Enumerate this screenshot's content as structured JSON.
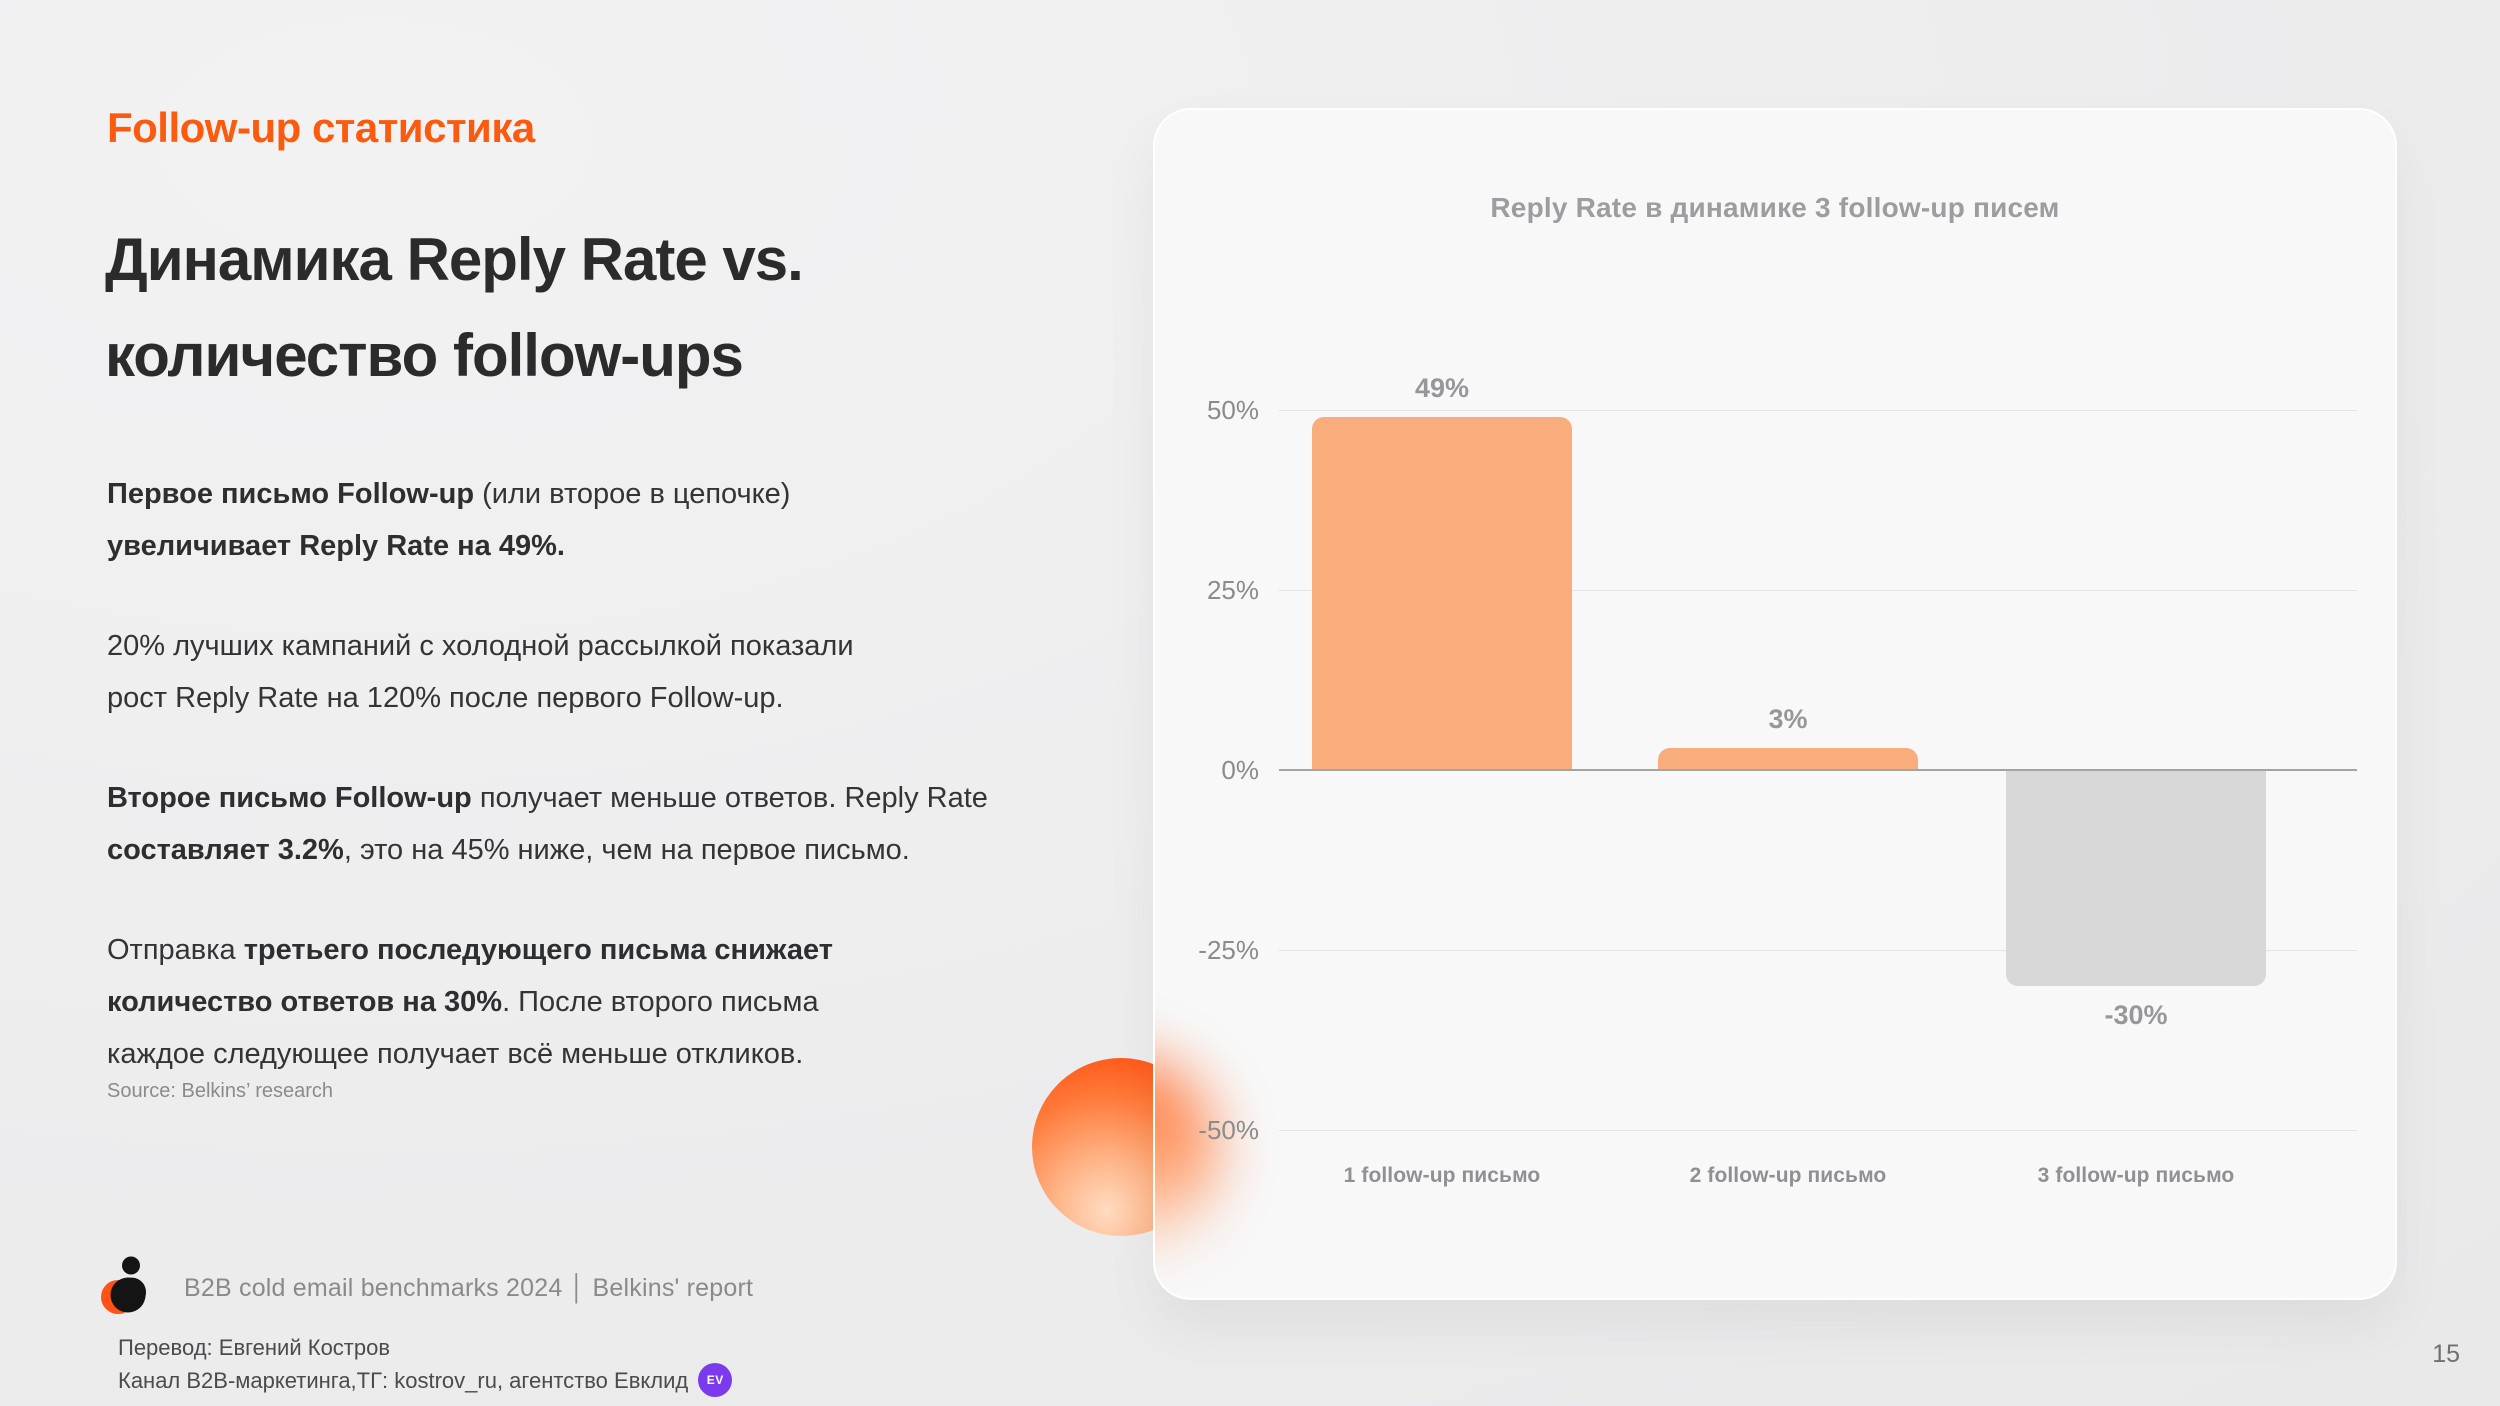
{
  "slide": {
    "page_number": "15"
  },
  "colors": {
    "accent_orange": "#fb5a0f",
    "bar_orange": "#f9ac7c",
    "bar_gray": "#d8d8d9",
    "badge_purple": "#7c3aed",
    "card_background": "#f8f8f9"
  },
  "header": {
    "eyebrow": "Follow-up статистика",
    "title_lines": [
      "Динамика Reply Rate vs.",
      "количество follow-ups"
    ]
  },
  "body": {
    "paragraphs": [
      {
        "segments": [
          {
            "text": "Первое письмо Follow-up",
            "bold": true
          },
          {
            "text": " (или второе в цепочке)",
            "bold": false
          },
          {
            "break": true
          },
          {
            "text": "увеличивает Reply Rate на 49%.",
            "bold": true
          }
        ]
      },
      {
        "segments": [
          {
            "text": "20% лучших кампаний с холодной рассылкой показали",
            "bold": false
          },
          {
            "break": true
          },
          {
            "text": "рост Reply Rate на 120% после первого Follow-up.",
            "bold": false
          }
        ]
      },
      {
        "segments": [
          {
            "text": "Второе письмо Follow-up",
            "bold": true
          },
          {
            "text": " получает меньше ответов. Reply Rate",
            "bold": false
          },
          {
            "break": true
          },
          {
            "text": "составляет 3.2%",
            "bold": true
          },
          {
            "text": ", это на 45% ниже, чем на первое письмо.",
            "bold": false
          }
        ]
      },
      {
        "segments": [
          {
            "text": "Отправка ",
            "bold": false
          },
          {
            "text": "третьего последующего письма снижает",
            "bold": true
          },
          {
            "break": true
          },
          {
            "text": "количество ответов на 30%",
            "bold": true
          },
          {
            "text": ". После второго письма",
            "bold": false
          },
          {
            "break": true
          },
          {
            "text": "каждое следующее получает всё меньше откликов.",
            "bold": false
          }
        ]
      }
    ],
    "source_note": "Source: Belkins’ research"
  },
  "footer": {
    "report_label": "B2B cold email benchmarks 2024 │ Belkins' report",
    "credit_line1": "Перевод: Евгений Костров",
    "credit_line2": "Канал B2B-маркетинга,ТГ: kostrov_ru, агентство Евклид",
    "badge_text": "EV",
    "logo_icon": "belkins-mark-icon",
    "badge_icon": "ev-agency-badge-icon"
  },
  "chart_data": {
    "type": "bar",
    "title": "Reply Rate в динамике 3 follow-up писем",
    "categories": [
      "1 follow-up письмо",
      "2 follow-up письмо",
      "3 follow-up письмо"
    ],
    "values": [
      49,
      3,
      -30
    ],
    "value_labels": [
      "49%",
      "3%",
      "-30%"
    ],
    "y_ticks": [
      "50%",
      "25%",
      "0%",
      "-25%",
      "-50%"
    ],
    "y_tick_values": [
      50,
      25,
      0,
      -25,
      -50
    ],
    "ylim": [
      -50,
      50
    ],
    "xlabel": "",
    "ylabel": "",
    "grid": true,
    "legend": false,
    "bar_colors": [
      "#f9ac7c",
      "#f9ac7c",
      "#d8d8d9"
    ]
  }
}
